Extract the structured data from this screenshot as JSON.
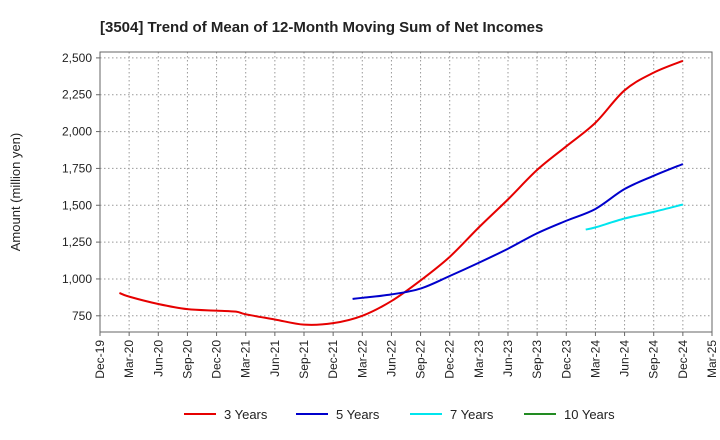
{
  "chart_data": {
    "type": "line",
    "title": "[3504]  Trend of Mean of 12-Month Moving Sum of Net Incomes",
    "ylabel": "Amount (million yen)",
    "xlabel": "",
    "ylim": [
      640,
      2540
    ],
    "yticks": [
      750,
      1000,
      1250,
      1500,
      1750,
      2000,
      2250,
      2500
    ],
    "ytick_labels": [
      "750",
      "1,000",
      "1,250",
      "1,500",
      "1,750",
      "2,000",
      "2,250",
      "2,500"
    ],
    "x_tick_labels": [
      "Dec-19",
      "Mar-20",
      "Jun-20",
      "Sep-20",
      "Dec-20",
      "Mar-21",
      "Jun-21",
      "Sep-21",
      "Dec-21",
      "Mar-22",
      "Jun-22",
      "Sep-22",
      "Dec-22",
      "Mar-23",
      "Jun-23",
      "Sep-23",
      "Dec-23",
      "Mar-24",
      "Jun-24",
      "Sep-24",
      "Dec-24",
      "Mar-25"
    ],
    "grid": true,
    "legend_position": "bottom",
    "series": [
      {
        "name": "3 Years",
        "color": "#e60000",
        "x": [
          "Feb-20",
          "Mar-20",
          "Jun-20",
          "Sep-20",
          "Dec-20",
          "Feb-21",
          "Mar-21",
          "Jun-21",
          "Sep-21",
          "Dec-21",
          "Mar-22",
          "Jun-22",
          "Sep-22",
          "Dec-22",
          "Mar-23",
          "Jun-23",
          "Sep-23",
          "Dec-23",
          "Mar-24",
          "Jun-24",
          "Sep-24",
          "Dec-24"
        ],
        "values": [
          905,
          880,
          830,
          795,
          785,
          778,
          760,
          725,
          690,
          700,
          750,
          850,
          990,
          1150,
          1350,
          1540,
          1740,
          1900,
          2060,
          2280,
          2400,
          2480
        ]
      },
      {
        "name": "5 Years",
        "color": "#0000cc",
        "x": [
          "Feb-22",
          "Mar-22",
          "Jun-22",
          "Sep-22",
          "Dec-22",
          "Mar-23",
          "Jun-23",
          "Sep-23",
          "Dec-23",
          "Mar-24",
          "Jun-24",
          "Sep-24",
          "Dec-24"
        ],
        "values": [
          865,
          872,
          895,
          935,
          1020,
          1110,
          1205,
          1310,
          1395,
          1475,
          1610,
          1700,
          1780
        ]
      },
      {
        "name": "7 Years",
        "color": "#00e5ee",
        "x": [
          "Feb-24",
          "Mar-24",
          "Jun-24",
          "Sep-24",
          "Dec-24"
        ],
        "values": [
          1335,
          1350,
          1410,
          1455,
          1505
        ]
      },
      {
        "name": "10 Years",
        "color": "#228b22",
        "x": [],
        "values": []
      }
    ]
  }
}
